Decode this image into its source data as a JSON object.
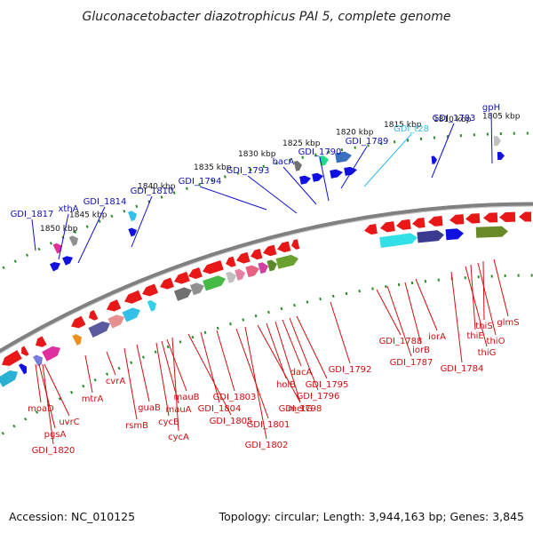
{
  "title": "Gluconacetobacter diazotrophicus PAI 5, complete genome",
  "footer": {
    "accession": "Accession: NC_010125",
    "topology": "Topology: circular; Length: 3,944,163 bp; Genes: 3,845"
  },
  "ticks": [
    {
      "label": "1850 kbp"
    },
    {
      "label": "1845 kbp"
    },
    {
      "label": "1840 kbp"
    },
    {
      "label": "1835 kbp"
    },
    {
      "label": "1830 kbp"
    },
    {
      "label": "1825 kbp"
    },
    {
      "label": "1820 kbp"
    },
    {
      "label": "1815 kbp"
    },
    {
      "label": "1810 kbp"
    },
    {
      "label": "1805 kbp"
    }
  ],
  "labels_top": [
    {
      "text": "GDI_1817",
      "color": "#1010b0"
    },
    {
      "text": "xthA",
      "color": "#1010b0"
    },
    {
      "text": "GDI_1814",
      "color": "#1010b0"
    },
    {
      "text": "GDI_1810",
      "color": "#1010b0"
    },
    {
      "text": "GDI_1794",
      "color": "#1010b0"
    },
    {
      "text": "GDI_1793",
      "color": "#1010b0"
    },
    {
      "text": "bacA",
      "color": "#1010b0"
    },
    {
      "text": "GDI_1790",
      "color": "#1010b0"
    },
    {
      "text": "GDI_1789",
      "color": "#1010b0"
    },
    {
      "text": "GDI_t28",
      "color": "#33bbee"
    },
    {
      "text": "GDI_1783",
      "color": "#1010b0"
    },
    {
      "text": "gpH",
      "color": "#1010b0"
    }
  ],
  "labels_bottom": [
    {
      "text": "moaD"
    },
    {
      "text": "pgsA"
    },
    {
      "text": "uvrC"
    },
    {
      "text": "GDI_1820"
    },
    {
      "text": "mtrA"
    },
    {
      "text": "cvrA"
    },
    {
      "text": "rsmB"
    },
    {
      "text": "guaB"
    },
    {
      "text": "cycB"
    },
    {
      "text": "mauA"
    },
    {
      "text": "mauB"
    },
    {
      "text": "cycA"
    },
    {
      "text": "GDI_1805"
    },
    {
      "text": "GDI_1804"
    },
    {
      "text": "GDI_1803"
    },
    {
      "text": "GDI_1801"
    },
    {
      "text": "GDI_1802"
    },
    {
      "text": "metG"
    },
    {
      "text": "holB"
    },
    {
      "text": "GDI_1798"
    },
    {
      "text": "dacA"
    },
    {
      "text": "GDI_1796"
    },
    {
      "text": "GDI_1795"
    },
    {
      "text": "GDI_1792"
    },
    {
      "text": "GDI_1788"
    },
    {
      "text": "GDI_1787"
    },
    {
      "text": "iorB"
    },
    {
      "text": "iorA"
    },
    {
      "text": "GDI_1784"
    },
    {
      "text": "thiG"
    },
    {
      "text": "thiE"
    },
    {
      "text": "thiO"
    },
    {
      "text": "thiS"
    },
    {
      "text": "glmS"
    }
  ],
  "colors": {
    "backbone": "#808080",
    "forward_gene": "#1010e0",
    "reverse_gene": "#e81818",
    "tick_mark": "#2a8a2a",
    "label_blue": "#1010b0",
    "label_red": "#cc1010",
    "label_cyan": "#33bbee"
  }
}
